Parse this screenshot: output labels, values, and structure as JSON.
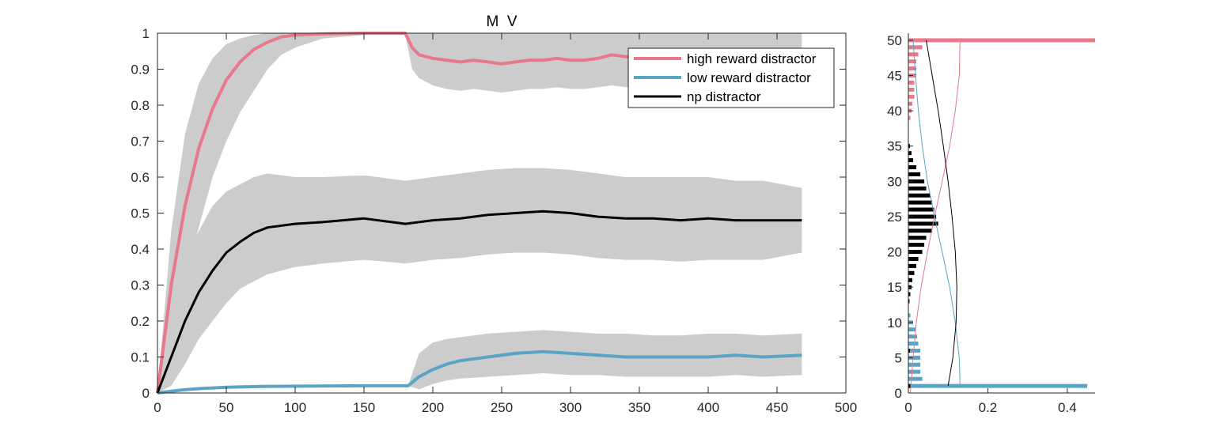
{
  "chart_data": [
    {
      "type": "line",
      "title": "M  V",
      "xlabel": "",
      "ylabel": "",
      "xlim": [
        0,
        500
      ],
      "ylim": [
        0,
        1
      ],
      "x_ticks": [
        0,
        50,
        100,
        150,
        200,
        250,
        300,
        350,
        400,
        450,
        500
      ],
      "y_ticks": [
        0,
        0.1,
        0.2,
        0.3,
        0.4,
        0.5,
        0.6,
        0.7,
        0.8,
        0.9,
        1
      ],
      "x_tick_labels": [
        "0",
        "50",
        "100",
        "150",
        "200",
        "250",
        "300",
        "350",
        "400",
        "450",
        "500"
      ],
      "y_tick_labels": [
        "0",
        "0.1",
        "0.2",
        "0.3",
        "0.4",
        "0.5",
        "0.6",
        "0.7",
        "0.8",
        "0.9",
        "1"
      ],
      "grid": false,
      "legend_position": "top-right",
      "shaded_band_color": "#cccccc",
      "series": [
        {
          "name": "high reward distractor",
          "color": "#e8788a",
          "x": [
            0,
            10,
            20,
            30,
            40,
            50,
            60,
            70,
            80,
            90,
            100,
            120,
            150,
            180,
            185,
            190,
            200,
            210,
            220,
            230,
            240,
            250,
            260,
            270,
            280,
            290,
            300,
            310,
            320,
            330,
            340,
            350,
            360,
            380,
            400,
            420,
            440,
            468
          ],
          "y": [
            0,
            0.3,
            0.52,
            0.68,
            0.79,
            0.87,
            0.92,
            0.955,
            0.975,
            0.99,
            0.995,
            0.998,
            1.0,
            1.0,
            0.96,
            0.94,
            0.93,
            0.925,
            0.92,
            0.925,
            0.92,
            0.915,
            0.92,
            0.925,
            0.925,
            0.93,
            0.925,
            0.925,
            0.93,
            0.94,
            0.935,
            0.93,
            0.93,
            0.93,
            0.93,
            0.93,
            0.93,
            0.93
          ],
          "upper": [
            0,
            0.45,
            0.72,
            0.86,
            0.93,
            0.97,
            0.985,
            0.995,
            1.0,
            1.0,
            1.0,
            1.0,
            1.0,
            1.0,
            1.0,
            1.0,
            1.0,
            1.0,
            1.0,
            1.0,
            1.0,
            1.0,
            1.0,
            1.0,
            1.0,
            1.0,
            1.0,
            1.0,
            1.0,
            1.0,
            1.0,
            1.0,
            1.0,
            1.0,
            1.0,
            1.0,
            1.0,
            1.0
          ],
          "lower": [
            0,
            0.12,
            0.3,
            0.46,
            0.6,
            0.7,
            0.78,
            0.84,
            0.9,
            0.94,
            0.96,
            0.985,
            0.995,
            0.995,
            0.9,
            0.875,
            0.855,
            0.845,
            0.84,
            0.845,
            0.84,
            0.835,
            0.84,
            0.845,
            0.845,
            0.85,
            0.845,
            0.845,
            0.85,
            0.855,
            0.85,
            0.85,
            0.85,
            0.85,
            0.85,
            0.85,
            0.85,
            0.85
          ]
        },
        {
          "name": "low reward distractor",
          "color": "#5aa3c4",
          "x": [
            0,
            10,
            20,
            30,
            50,
            75,
            100,
            150,
            182,
            190,
            200,
            210,
            220,
            240,
            260,
            280,
            300,
            320,
            340,
            360,
            380,
            400,
            420,
            440,
            468
          ],
          "y": [
            0,
            0.005,
            0.009,
            0.012,
            0.016,
            0.018,
            0.019,
            0.02,
            0.02,
            0.045,
            0.065,
            0.08,
            0.09,
            0.1,
            0.11,
            0.115,
            0.11,
            0.105,
            0.1,
            0.1,
            0.1,
            0.1,
            0.105,
            0.1,
            0.105
          ],
          "upper": [
            0,
            0.005,
            0.009,
            0.012,
            0.016,
            0.018,
            0.019,
            0.02,
            0.02,
            0.11,
            0.14,
            0.15,
            0.155,
            0.165,
            0.17,
            0.175,
            0.17,
            0.165,
            0.165,
            0.16,
            0.16,
            0.165,
            0.165,
            0.16,
            0.165
          ],
          "lower": [
            0,
            0.005,
            0.009,
            0.012,
            0.016,
            0.018,
            0.019,
            0.02,
            0.02,
            0.01,
            0.025,
            0.035,
            0.04,
            0.045,
            0.05,
            0.055,
            0.05,
            0.05,
            0.045,
            0.045,
            0.045,
            0.045,
            0.05,
            0.045,
            0.05
          ]
        },
        {
          "name": "np distractor",
          "color": "#000000",
          "x": [
            0,
            10,
            20,
            30,
            40,
            50,
            60,
            70,
            80,
            100,
            120,
            150,
            180,
            200,
            220,
            240,
            260,
            280,
            300,
            320,
            340,
            360,
            380,
            400,
            420,
            440,
            468
          ],
          "y": [
            0,
            0.1,
            0.2,
            0.28,
            0.34,
            0.39,
            0.42,
            0.445,
            0.46,
            0.47,
            0.475,
            0.485,
            0.47,
            0.48,
            0.485,
            0.495,
            0.5,
            0.505,
            0.5,
            0.49,
            0.485,
            0.485,
            0.48,
            0.485,
            0.48,
            0.48,
            0.48
          ],
          "upper": [
            0,
            0.22,
            0.36,
            0.45,
            0.52,
            0.56,
            0.58,
            0.6,
            0.61,
            0.6,
            0.6,
            0.605,
            0.59,
            0.6,
            0.61,
            0.62,
            0.625,
            0.625,
            0.62,
            0.61,
            0.6,
            0.6,
            0.6,
            0.6,
            0.59,
            0.59,
            0.57
          ],
          "lower": [
            0,
            0.02,
            0.08,
            0.15,
            0.2,
            0.25,
            0.29,
            0.31,
            0.33,
            0.35,
            0.36,
            0.37,
            0.36,
            0.37,
            0.375,
            0.385,
            0.39,
            0.39,
            0.385,
            0.375,
            0.37,
            0.37,
            0.365,
            0.37,
            0.37,
            0.37,
            0.39
          ]
        }
      ]
    },
    {
      "type": "bar",
      "orientation": "horizontal",
      "title": "",
      "xlabel": "",
      "ylabel": "",
      "xlim": [
        0,
        0.47
      ],
      "ylim": [
        0,
        51
      ],
      "x_ticks": [
        0,
        0.2,
        0.4
      ],
      "y_ticks": [
        0,
        5,
        10,
        15,
        20,
        25,
        30,
        35,
        40,
        45,
        50
      ],
      "x_tick_labels": [
        "0",
        "0.2",
        "0.4"
      ],
      "y_tick_labels": [
        "0",
        "5",
        "10",
        "15",
        "20",
        "25",
        "30",
        "35",
        "40",
        "45",
        "50"
      ],
      "grid": false,
      "series": [
        {
          "name": "high reward distractor",
          "color": "#e8788a",
          "bins": [
            50,
            49,
            48,
            47,
            46,
            45,
            44,
            43,
            42,
            41,
            40,
            39
          ],
          "values": [
            0.47,
            0.035,
            0.025,
            0.02,
            0.02,
            0.02,
            0.015,
            0.015,
            0.015,
            0.01,
            0.008,
            0.005
          ]
        },
        {
          "name": "low reward distractor",
          "color": "#5aa3c4",
          "bins": [
            1,
            2,
            3,
            4,
            5,
            6,
            7,
            8,
            9,
            10,
            11
          ],
          "values": [
            0.45,
            0.035,
            0.03,
            0.03,
            0.03,
            0.03,
            0.025,
            0.022,
            0.018,
            0.012,
            0.005
          ]
        },
        {
          "name": "np distractor",
          "color": "#000000",
          "bins": [
            1,
            6,
            13,
            14,
            15,
            16,
            17,
            18,
            19,
            20,
            21,
            22,
            23,
            24,
            25,
            26,
            27,
            28,
            29,
            30,
            31,
            32,
            33,
            34,
            35
          ],
          "values": [
            0.005,
            0.004,
            0.003,
            0.005,
            0.008,
            0.01,
            0.015,
            0.02,
            0.025,
            0.035,
            0.04,
            0.045,
            0.06,
            0.075,
            0.07,
            0.065,
            0.06,
            0.055,
            0.045,
            0.04,
            0.03,
            0.02,
            0.012,
            0.008,
            0.004
          ]
        }
      ],
      "density_curves": [
        {
          "color": "#e8788a",
          "points": [
            [
              0.005,
              0
            ],
            [
              0.012,
              5
            ],
            [
              0.02,
              10
            ],
            [
              0.032,
              15
            ],
            [
              0.048,
              20
            ],
            [
              0.066,
              25
            ],
            [
              0.085,
              30
            ],
            [
              0.104,
              35
            ],
            [
              0.118,
              40
            ],
            [
              0.128,
              45
            ],
            [
              0.13,
              50
            ]
          ]
        },
        {
          "color": "#5aa3c4",
          "points": [
            [
              0.13,
              1
            ],
            [
              0.128,
              5
            ],
            [
              0.118,
              10
            ],
            [
              0.104,
              15
            ],
            [
              0.085,
              20
            ],
            [
              0.066,
              25
            ],
            [
              0.048,
              30
            ],
            [
              0.035,
              35
            ],
            [
              0.025,
              40
            ],
            [
              0.018,
              45
            ],
            [
              0.012,
              50
            ]
          ]
        },
        {
          "color": "#000000",
          "points": [
            [
              0.1,
              1
            ],
            [
              0.112,
              5
            ],
            [
              0.12,
              10
            ],
            [
              0.122,
              15
            ],
            [
              0.118,
              20
            ],
            [
              0.11,
              25
            ],
            [
              0.1,
              30
            ],
            [
              0.088,
              35
            ],
            [
              0.075,
              40
            ],
            [
              0.06,
              45
            ],
            [
              0.045,
              50
            ]
          ]
        }
      ]
    }
  ]
}
